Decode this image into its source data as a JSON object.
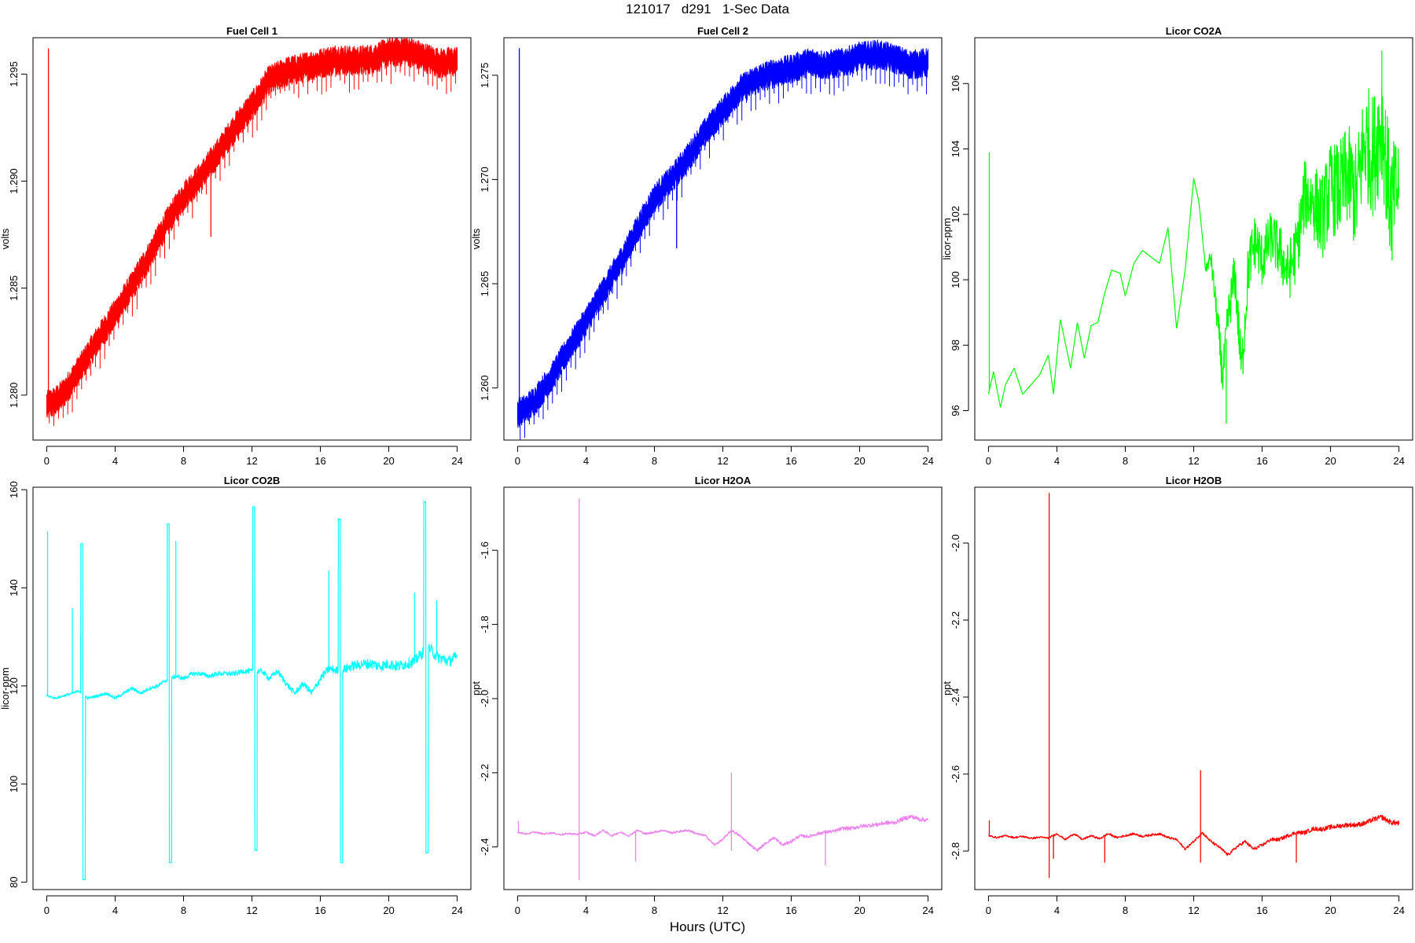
{
  "figure": {
    "title": "121017   d291   1-Sec Data",
    "xlabel": "Hours (UTC)"
  },
  "chart_data": [
    {
      "type": "line",
      "title": "Fuel Cell 1",
      "ylabel": "volts",
      "xlim": [
        -0.8,
        24.8
      ],
      "ylim": [
        1.2779,
        1.2967
      ],
      "xticks": [
        0,
        4,
        8,
        12,
        16,
        20,
        24
      ],
      "xtick_labels": [
        "0",
        "4",
        "8",
        "12",
        "16",
        "20",
        "24"
      ],
      "yticks": [
        1.28,
        1.285,
        1.29,
        1.295
      ],
      "ytick_labels": [
        "1.280",
        "1.285",
        "1.290",
        "1.295"
      ],
      "color": "#ff0000",
      "band": 0.0009,
      "x": [
        0,
        0.5,
        1,
        2,
        3,
        4,
        5,
        6,
        7,
        8,
        9,
        10,
        11,
        12,
        13,
        14,
        15,
        16,
        17,
        18,
        19,
        20,
        21,
        22,
        23,
        24
      ],
      "y": [
        1.2795,
        1.2797,
        1.2801,
        1.2813,
        1.2826,
        1.2838,
        1.2851,
        1.2865,
        1.288,
        1.2893,
        1.2902,
        1.2913,
        1.2925,
        1.2935,
        1.2947,
        1.2951,
        1.2953,
        1.2955,
        1.2957,
        1.2956,
        1.2957,
        1.296,
        1.2961,
        1.2958,
        1.2955,
        1.2956
      ],
      "spikes": [
        [
          0.1,
          1.2962
        ],
        [
          9.6,
          1.2874
        ]
      ]
    },
    {
      "type": "line",
      "title": "Fuel Cell 2",
      "ylabel": "volts",
      "xlim": [
        -0.8,
        24.8
      ],
      "ylim": [
        1.2575,
        1.2768
      ],
      "xticks": [
        0,
        4,
        8,
        12,
        16,
        20,
        24
      ],
      "xtick_labels": [
        "0",
        "4",
        "8",
        "12",
        "16",
        "20",
        "24"
      ],
      "yticks": [
        1.26,
        1.265,
        1.27,
        1.275
      ],
      "ytick_labels": [
        "1.260",
        "1.265",
        "1.270",
        "1.275"
      ],
      "color": "#0000ff",
      "band": 0.0009,
      "x": [
        0,
        0.5,
        1,
        2,
        3,
        4,
        5,
        6,
        7,
        8,
        9,
        10,
        11,
        12,
        13,
        14,
        15,
        16,
        17,
        18,
        19,
        20,
        21,
        22,
        23,
        24
      ],
      "y": [
        1.2588,
        1.259,
        1.2594,
        1.2605,
        1.2619,
        1.2632,
        1.2646,
        1.266,
        1.2676,
        1.2691,
        1.27,
        1.2711,
        1.2723,
        1.2733,
        1.2743,
        1.2748,
        1.2751,
        1.2753,
        1.2756,
        1.2755,
        1.2756,
        1.2759,
        1.276,
        1.2758,
        1.2755,
        1.2756
      ],
      "spikes": [
        [
          0.1,
          1.2763
        ],
        [
          9.3,
          1.2667
        ]
      ]
    },
    {
      "type": "line",
      "title": "Licor CO2A",
      "ylabel": "licor-ppm",
      "xlim": [
        -0.8,
        24.8
      ],
      "ylim": [
        95.1,
        107.4
      ],
      "xticks": [
        0,
        4,
        8,
        12,
        16,
        20,
        24
      ],
      "xtick_labels": [
        "0",
        "4",
        "8",
        "12",
        "16",
        "20",
        "24"
      ],
      "yticks": [
        96,
        98,
        100,
        102,
        104,
        106
      ],
      "ytick_labels": [
        "96",
        "98",
        "100",
        "102",
        "104",
        "106"
      ],
      "color": "#00ff00",
      "x": [
        0,
        0.3,
        0.7,
        1,
        1.5,
        2,
        2.5,
        3,
        3.5,
        3.8,
        4.2,
        4.8,
        5.2,
        5.6,
        6,
        6.4,
        6.8,
        7.2,
        7.7,
        8,
        8.5,
        9,
        9.5,
        10,
        10.5,
        11,
        11.5,
        12,
        12.3,
        12.7,
        13,
        13.3,
        13.7,
        14,
        14.4,
        14.8,
        15.2,
        15.6,
        16,
        16.5,
        17,
        17.5,
        18,
        18.5,
        19,
        19.5,
        20,
        20.5,
        21,
        21.5,
        22,
        22.5,
        23,
        23.5,
        24
      ],
      "y": [
        96.5,
        97.2,
        96.1,
        96.8,
        97.3,
        96.5,
        96.8,
        97.1,
        97.7,
        96.5,
        98.8,
        97.3,
        98.7,
        97.6,
        98.6,
        98.7,
        99.6,
        100.3,
        100.2,
        99.5,
        100.5,
        100.9,
        100.7,
        100.5,
        101.6,
        98.5,
        100.3,
        103.1,
        102.4,
        100.3,
        100.7,
        99.2,
        97.0,
        98.8,
        100.2,
        97.2,
        100.4,
        101.2,
        100.6,
        101.3,
        100.9,
        100.2,
        100.9,
        102.6,
        102.4,
        101.9,
        102.8,
        102.7,
        103.2,
        102.5,
        104.3,
        103.8,
        104.9,
        102.3,
        102.9
      ],
      "noise": [
        [
          0,
          0
        ],
        [
          12.5,
          0
        ],
        [
          13.5,
          0.6
        ],
        [
          15.5,
          0.9
        ],
        [
          16.5,
          0.8
        ],
        [
          18,
          1.0
        ],
        [
          20,
          1.4
        ],
        [
          22,
          1.8
        ],
        [
          23,
          2.0
        ],
        [
          24,
          1.6
        ]
      ],
      "spikes": [
        [
          0.05,
          103.9
        ],
        [
          23.0,
          107.0
        ],
        [
          13.9,
          95.6
        ],
        [
          23.6,
          100.6
        ]
      ]
    },
    {
      "type": "line",
      "title": "Licor CO2B",
      "ylabel": "licor-ppm",
      "xlim": [
        -0.8,
        24.8
      ],
      "ylim": [
        78.5,
        160.5
      ],
      "xticks": [
        0,
        4,
        8,
        12,
        16,
        20,
        24
      ],
      "xtick_labels": [
        "0",
        "4",
        "8",
        "12",
        "16",
        "20",
        "24"
      ],
      "yticks": [
        80,
        100,
        120,
        140,
        160
      ],
      "ytick_labels": [
        "80",
        "100",
        "120",
        "140",
        "160"
      ],
      "color": "#00ffff",
      "x": [
        0,
        0.5,
        1,
        1.5,
        1.9,
        2.4,
        3,
        3.5,
        4,
        4.5,
        5,
        5.5,
        6,
        6.5,
        6.9,
        7.6,
        8,
        8.5,
        9,
        9.5,
        10,
        10.5,
        11,
        11.5,
        11.9,
        12.6,
        13,
        13.5,
        14,
        14.5,
        15,
        15.5,
        16,
        16.5,
        17.2,
        17.8,
        18.5,
        19,
        19.5,
        20,
        20.5,
        21,
        21.5,
        22.3,
        22.8,
        23.5,
        24
      ],
      "y": [
        118,
        117.5,
        118,
        118.5,
        119,
        117.5,
        118,
        118.5,
        117.5,
        118.5,
        119.5,
        118.5,
        119.5,
        120,
        121,
        122,
        121.5,
        122.5,
        122.5,
        122,
        122.5,
        122.5,
        122.5,
        123,
        123,
        123,
        121.5,
        123,
        120.5,
        118.5,
        120.5,
        118.5,
        121.5,
        123.5,
        123,
        124,
        124.5,
        124.5,
        124,
        124.5,
        124,
        124.5,
        125,
        128,
        126,
        125,
        126
      ],
      "noise": [
        [
          0,
          0.2
        ],
        [
          15,
          0.6
        ],
        [
          18,
          1.0
        ],
        [
          24,
          1.2
        ]
      ],
      "spikes": [
        [
          0.05,
          151.5
        ],
        [
          1.5,
          135.8
        ],
        [
          7.55,
          149.5
        ],
        [
          16.5,
          143.5
        ],
        [
          21.5,
          139
        ],
        [
          22.8,
          137.5
        ]
      ],
      "calibrations": [
        {
          "x0": 2.0,
          "x1": 2.25,
          "high": 149,
          "low": 80.5
        },
        {
          "x0": 7.05,
          "x1": 7.3,
          "high": 153,
          "low": 84
        },
        {
          "x0": 12.05,
          "x1": 12.3,
          "high": 156.5,
          "low": 86.5
        },
        {
          "x0": 17.05,
          "x1": 17.3,
          "high": 154,
          "low": 84
        },
        {
          "x0": 22.05,
          "x1": 22.3,
          "high": 157.5,
          "low": 86
        }
      ]
    },
    {
      "type": "line",
      "title": "Licor H2OA",
      "ylabel": "ppt",
      "xlim": [
        -0.8,
        24.8
      ],
      "ylim": [
        -2.515,
        -1.43
      ],
      "xticks": [
        0,
        4,
        8,
        12,
        16,
        20,
        24
      ],
      "xtick_labels": [
        "0",
        "4",
        "8",
        "12",
        "16",
        "20",
        "24"
      ],
      "yticks": [
        -2.4,
        -2.2,
        -2.0,
        -1.8,
        -1.6
      ],
      "ytick_labels": [
        "-2.4",
        "-2.2",
        "-2.0",
        "-1.8",
        "-1.6"
      ],
      "color": "#ee82ee",
      "x": [
        0,
        0.5,
        1,
        1.5,
        2,
        2.5,
        3,
        3.5,
        4,
        4.5,
        5,
        5.5,
        6,
        6.5,
        7,
        7.5,
        8,
        8.5,
        9,
        9.5,
        10,
        10.5,
        11,
        11.5,
        12,
        12.5,
        13,
        13.5,
        14,
        14.5,
        15,
        15.5,
        16,
        16.5,
        17,
        17.5,
        18,
        18.5,
        19,
        19.5,
        20,
        20.5,
        21,
        21.5,
        22,
        22.5,
        23,
        23.5,
        24
      ],
      "y": [
        -2.36,
        -2.365,
        -2.36,
        -2.365,
        -2.362,
        -2.367,
        -2.364,
        -2.366,
        -2.36,
        -2.37,
        -2.355,
        -2.37,
        -2.36,
        -2.37,
        -2.355,
        -2.365,
        -2.36,
        -2.355,
        -2.362,
        -2.358,
        -2.355,
        -2.365,
        -2.37,
        -2.395,
        -2.38,
        -2.355,
        -2.37,
        -2.39,
        -2.41,
        -2.39,
        -2.375,
        -2.395,
        -2.385,
        -2.37,
        -2.372,
        -2.365,
        -2.36,
        -2.358,
        -2.35,
        -2.35,
        -2.345,
        -2.342,
        -2.34,
        -2.335,
        -2.335,
        -2.325,
        -2.318,
        -2.325,
        -2.328
      ],
      "noise": [
        [
          0,
          0.002
        ],
        [
          12,
          0.003
        ],
        [
          24,
          0.006
        ]
      ],
      "spikes": [
        [
          0.05,
          -2.33
        ],
        [
          3.6,
          -1.46
        ],
        [
          3.6,
          -2.49
        ],
        [
          6.9,
          -2.44
        ],
        [
          12.5,
          -2.2
        ],
        [
          12.5,
          -2.41
        ],
        [
          18,
          -2.45
        ]
      ]
    },
    {
      "type": "line",
      "title": "Licor H2OB",
      "ylabel": "ppt",
      "xlim": [
        -0.8,
        24.8
      ],
      "ylim": [
        -2.9,
        -1.855
      ],
      "xticks": [
        0,
        4,
        8,
        12,
        16,
        20,
        24
      ],
      "xtick_labels": [
        "0",
        "4",
        "8",
        "12",
        "16",
        "20",
        "24"
      ],
      "yticks": [
        -2.8,
        -2.6,
        -2.4,
        -2.2,
        -2.0
      ],
      "ytick_labels": [
        "-2.8",
        "-2.6",
        "-2.4",
        "-2.2",
        "-2.0"
      ],
      "color": "#ff0000",
      "x": [
        0,
        0.5,
        1,
        1.5,
        2,
        2.5,
        3,
        3.5,
        4,
        4.5,
        5,
        5.5,
        6,
        6.5,
        7,
        7.5,
        8,
        8.5,
        9,
        9.5,
        10,
        10.5,
        11,
        11.5,
        12,
        12.5,
        13,
        13.5,
        14,
        14.5,
        15,
        15.5,
        16,
        16.5,
        17,
        17.5,
        18,
        18.5,
        19,
        19.5,
        20,
        20.5,
        21,
        21.5,
        22,
        22.5,
        23,
        23.5,
        24
      ],
      "y": [
        -2.76,
        -2.765,
        -2.76,
        -2.765,
        -2.762,
        -2.767,
        -2.764,
        -2.766,
        -2.755,
        -2.77,
        -2.755,
        -2.77,
        -2.76,
        -2.768,
        -2.755,
        -2.765,
        -2.76,
        -2.755,
        -2.762,
        -2.758,
        -2.755,
        -2.765,
        -2.77,
        -2.795,
        -2.775,
        -2.752,
        -2.775,
        -2.79,
        -2.81,
        -2.79,
        -2.775,
        -2.795,
        -2.785,
        -2.77,
        -2.77,
        -2.76,
        -2.752,
        -2.752,
        -2.742,
        -2.743,
        -2.738,
        -2.735,
        -2.732,
        -2.732,
        -2.728,
        -2.718,
        -2.712,
        -2.725,
        -2.728
      ],
      "noise": [
        [
          0,
          0.002
        ],
        [
          12,
          0.003
        ],
        [
          24,
          0.007
        ]
      ],
      "spikes": [
        [
          0.05,
          -2.72
        ],
        [
          3.55,
          -1.87
        ],
        [
          3.55,
          -2.87
        ],
        [
          3.8,
          -2.82
        ],
        [
          6.8,
          -2.83
        ],
        [
          12.4,
          -2.59
        ],
        [
          12.4,
          -2.83
        ],
        [
          18,
          -2.83
        ]
      ]
    }
  ]
}
